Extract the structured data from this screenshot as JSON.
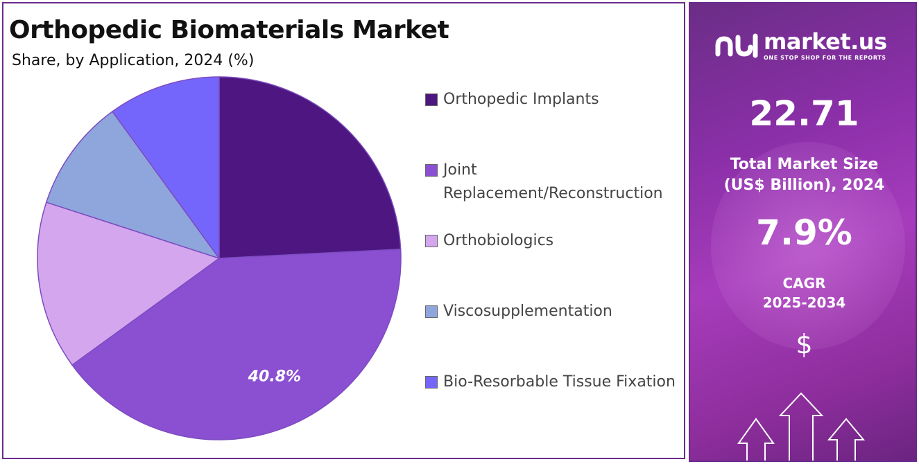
{
  "title": "Orthopedic Biomaterials Market",
  "subtitle": "Share, by Application, 2024 (%)",
  "chart_data": {
    "type": "pie",
    "title": "Orthopedic Biomaterials Market",
    "subtitle": "Share, by Application, 2024 (%)",
    "slices": [
      {
        "label": "Orthopedic Implants",
        "value": 24.2,
        "color": "#4e1680"
      },
      {
        "label": "Joint Replacement/Reconstruction",
        "value": 40.8,
        "color": "#8b4fd1",
        "data_label": "40.8%"
      },
      {
        "label": "Orthobiologics",
        "value": 15.0,
        "color": "#d4a6ee"
      },
      {
        "label": "Viscosupplementation",
        "value": 10.0,
        "color": "#8fa6dc"
      },
      {
        "label": "Bio-Resorbable Tissue Fixation",
        "value": 10.0,
        "color": "#7566fb"
      }
    ],
    "legend_placement": "right"
  },
  "sidebar": {
    "brand_name": "market.us",
    "brand_tagline": "ONE STOP SHOP FOR THE REPORTS",
    "market_size_value": "22.71",
    "market_size_label_line1": "Total Market Size",
    "market_size_label_line2": "(US$ Billion), 2024",
    "cagr_value": "7.9%",
    "cagr_label_line1": "CAGR",
    "cagr_label_line2": "2025-2034",
    "currency_symbol": "$",
    "icons": [
      "market-us-logo-icon",
      "dollar-icon",
      "growth-arrows-icon"
    ]
  }
}
